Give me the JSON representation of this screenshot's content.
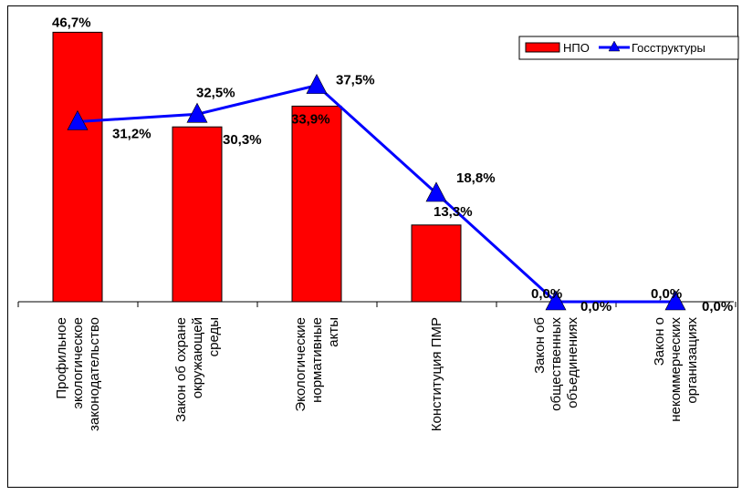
{
  "chart_data": {
    "type": "bar",
    "categories": [
      [
        "Профильное",
        "экологическое",
        "законодательство"
      ],
      [
        "Закон об охране",
        "окружающей",
        "среды"
      ],
      [
        "Экологические",
        "нормативные",
        "акты"
      ],
      [
        "Конституция  ПМР"
      ],
      [
        "Закон об",
        "общественных",
        "объединениях"
      ],
      [
        "Закон о",
        "некоммерческих",
        "организациях"
      ]
    ],
    "series": [
      {
        "name": "НПО",
        "kind": "bar",
        "color": "#ff0000",
        "values": [
          46.7,
          30.3,
          33.9,
          13.3,
          0.0,
          0.0
        ],
        "labels": [
          "46,7%",
          "30,3%",
          "33,9%",
          "13,3%",
          "0,0%",
          "0,0%"
        ]
      },
      {
        "name": "Госструктуры",
        "kind": "line",
        "color": "#0000ff",
        "values": [
          31.2,
          32.5,
          37.5,
          18.8,
          0.0,
          0.0
        ],
        "labels": [
          "31,2%",
          "32,5%",
          "37,5%",
          "18,8%",
          "0,0%",
          "0,0%"
        ]
      }
    ],
    "ylim": [
      0,
      47
    ],
    "grid": false,
    "legend_position": "top-right"
  }
}
